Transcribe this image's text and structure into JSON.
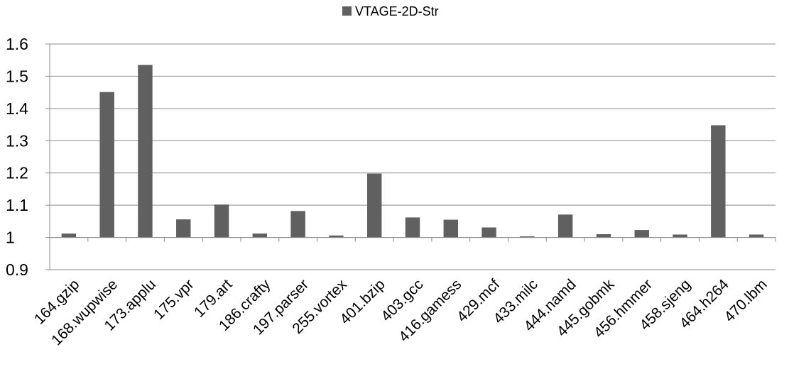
{
  "chart_data": {
    "type": "bar",
    "categories": [
      "164.gzip",
      "168.wupwise",
      "173.applu",
      "175.vpr",
      "179.art",
      "186.crafty",
      "197.parser",
      "255.vortex",
      "401.bzip",
      "403.gcc",
      "416.gamess",
      "429.mcf",
      "433.milc",
      "444.namd",
      "445.gobmk",
      "456.hmmer",
      "458.sjeng",
      "464.h264",
      "470.lbm"
    ],
    "series": [
      {
        "name": "VTAGE-2D-Str",
        "values": [
          1.012,
          1.451,
          1.535,
          1.056,
          1.102,
          1.012,
          1.082,
          1.006,
          1.198,
          1.062,
          1.055,
          1.031,
          1.001,
          1.071,
          1.01,
          1.023,
          1.009,
          1.348,
          1.009
        ],
        "color": "#606060"
      }
    ],
    "ylim": [
      0.9,
      1.6
    ],
    "yticks": [
      "0.9",
      "1",
      "1.1",
      "1.2",
      "1.3",
      "1.4",
      "1.5",
      "1.6"
    ],
    "baseline": 1.0,
    "grid": true,
    "legend": "top-center",
    "title": "",
    "xlabel": "",
    "ylabel": ""
  }
}
